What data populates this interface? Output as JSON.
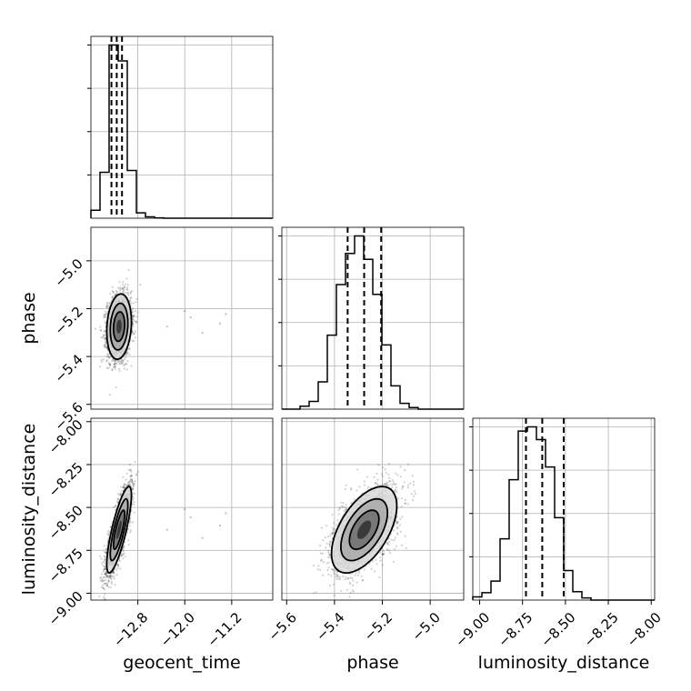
{
  "chart_data": {
    "type": "corner",
    "parameters": [
      {
        "name": "geocent_time",
        "label": "geocent_time",
        "range": [
          -13.6,
          -10.5
        ],
        "ticks": [
          -12.8,
          -12.0,
          -11.2
        ],
        "tick_labels": [
          "−12.8",
          "−12.0",
          "−11.2"
        ]
      },
      {
        "name": "phase",
        "label": "phase",
        "range": [
          -5.62,
          -4.86
        ],
        "ticks": [
          -5.6,
          -5.4,
          -5.2,
          -5.0
        ],
        "tick_labels": [
          "−5.6",
          "−5.4",
          "−5.2",
          "−5.0"
        ]
      },
      {
        "name": "luminosity_distance",
        "label": "luminosity_distance",
        "range": [
          -9.04,
          -7.98
        ],
        "ticks": [
          -9.0,
          -8.75,
          -8.5,
          -8.25,
          -8.0
        ],
        "tick_labels": [
          "−9.00",
          "−8.75",
          "−8.50",
          "−8.25",
          "−8.00"
        ]
      }
    ],
    "histograms": [
      {
        "param": "geocent_time",
        "bin_edges": [
          -13.6,
          -13.445,
          -13.29,
          -13.135,
          -12.98,
          -12.825,
          -12.67,
          -12.515,
          -12.36,
          -12.205,
          -12.05,
          -11.895,
          -11.74,
          -11.585,
          -11.43,
          -11.275,
          -11.12,
          -10.965,
          -10.81,
          -10.655,
          -10.5
        ],
        "counts": [
          45,
          260,
          980,
          890,
          270,
          30,
          8,
          2,
          0,
          0,
          0,
          0,
          0,
          0,
          0,
          0,
          0,
          0,
          0,
          0
        ],
        "quantiles": [
          -13.25,
          -13.16,
          -13.07
        ]
      },
      {
        "param": "phase",
        "bin_edges": [
          -5.62,
          -5.582,
          -5.544,
          -5.506,
          -5.468,
          -5.43,
          -5.392,
          -5.354,
          -5.316,
          -5.278,
          -5.24,
          -5.202,
          -5.164,
          -5.126,
          -5.088,
          -5.05,
          -5.012,
          -4.974,
          -4.936,
          -4.898,
          -4.86
        ],
        "counts": [
          0,
          0,
          15,
          40,
          140,
          380,
          640,
          800,
          890,
          770,
          590,
          330,
          120,
          30,
          8,
          0,
          0,
          0,
          0,
          0
        ],
        "quantiles": [
          -5.345,
          -5.276,
          -5.205
        ]
      },
      {
        "param": "luminosity_distance",
        "bin_edges": [
          -9.04,
          -8.987,
          -8.934,
          -8.881,
          -8.828,
          -8.775,
          -8.722,
          -8.669,
          -8.616,
          -8.563,
          -8.51,
          -8.457,
          -8.404,
          -8.351,
          -8.298,
          -8.245,
          -8.192,
          -8.139,
          -8.086,
          -8.033,
          -7.98
        ],
        "counts": [
          15,
          35,
          90,
          290,
          570,
          800,
          820,
          760,
          630,
          390,
          140,
          40,
          10,
          0,
          0,
          0,
          0,
          0,
          0,
          0
        ],
        "quantiles": [
          -8.73,
          -8.635,
          -8.51
        ]
      }
    ],
    "pairs": [
      {
        "x": "geocent_time",
        "y": "phase",
        "center": [
          -13.12,
          -5.275
        ],
        "sigma": [
          0.1,
          0.065
        ],
        "rho": 0.15
      },
      {
        "x": "geocent_time",
        "y": "luminosity_distance",
        "center": [
          -13.12,
          -8.63
        ],
        "sigma": [
          0.1,
          0.12
        ],
        "rho": 0.8
      },
      {
        "x": "phase",
        "y": "luminosity_distance",
        "center": [
          -5.276,
          -8.63
        ],
        "sigma": [
          0.065,
          0.12
        ],
        "rho": 0.55
      }
    ],
    "grid": true,
    "quantile_style": "dashed"
  }
}
